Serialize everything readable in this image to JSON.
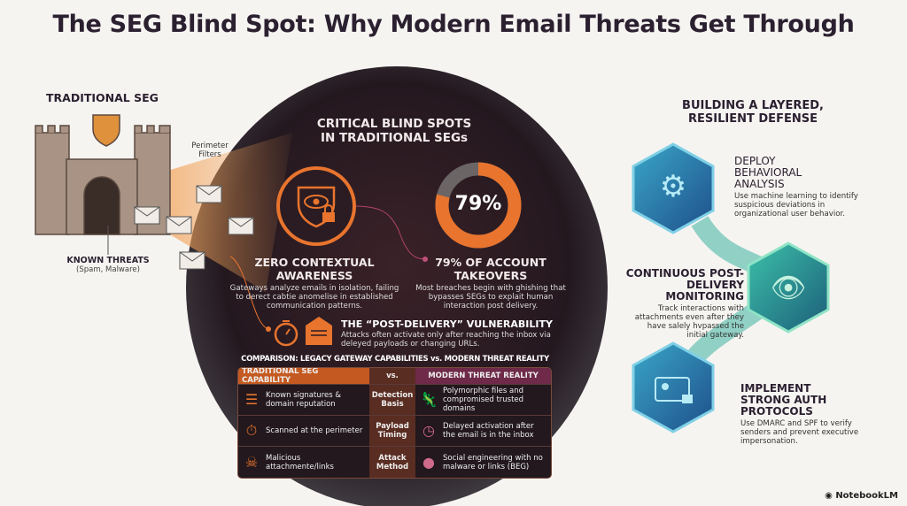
{
  "title": "The SEG Blind Spot: Why Modern Email Threats Get Through",
  "left": {
    "heading": "TRADITIONAL SEG",
    "perimeter_label": "Perimeter Filters",
    "known_threats": "KNOWN THREATS",
    "known_threats_sub": "(Spam, Malware)"
  },
  "center": {
    "heading_line1": "CRITICAL BLIND SPOTS",
    "heading_line2": "IN TRADITIONAL SEGs",
    "zero": {
      "title_line1": "ZERO CONTEXTUAL",
      "title_line2": "AWARENESS",
      "desc": "Gateways analyze emails in isolation, failing to derect cabtie anomelise in established communication patterns."
    },
    "ato": {
      "value_label": "79%",
      "percent": 79,
      "title_line1": "79% OF ACCOUNT",
      "title_line2": "TAKEOVERS",
      "desc": "Most breaches begin with ghishing that bypasses SEGs to explait human interaction post delivery."
    },
    "post": {
      "title": "THE “POST-DELIVERY” VULNERABILITY",
      "desc": "Attacks often activate only after reaching the inbox via deleyed payloads or changing URLs."
    },
    "colors": {
      "accent": "#e8742e",
      "blob": "#2a1d24",
      "magenta": "#7a2a4a"
    }
  },
  "comparison": {
    "heading": "COMPARISON: LEGACY GATEWAY CAPABILITIES vs. MODERN THREAT REALITY",
    "headers": [
      "TRADITIONAL SEG CAPABILITY",
      "vs.",
      "MODERN THREAT REALITY"
    ],
    "rows": [
      {
        "left": "Known signatures & domain reputation",
        "left_icon": "list-window-icon",
        "mid": "Detection Basis",
        "right": "Polymorphic files and compromised trusted domains",
        "right_icon": "chameleon-icon"
      },
      {
        "left": "Scanned at the perimeter",
        "left_icon": "gate-timer-icon",
        "mid": "Payload Timing",
        "right": "Delayed activation after the email is in the inbox",
        "right_icon": "clock-icon"
      },
      {
        "left": "Malicious attachmente/links",
        "left_icon": "skull-icon",
        "mid": "Attack Method",
        "right": "Social engineering with no malware or links (BEG)",
        "right_icon": "hacker-icon"
      }
    ]
  },
  "right": {
    "heading_line1": "BUILDING A LAYERED,",
    "heading_line2": "RESILIENT DEFENSE",
    "steps": [
      {
        "title": "DEPLOY BEHAVIORAL ANALYSIS",
        "desc": "Use machine learning to identify suspicious deviations in organizational user behavior.",
        "icon": "brain-circuit-icon"
      },
      {
        "title": "CONTINUOUS POST-DELIVERY MONITORING",
        "desc": "Track interactions with attachments even after they have salely hvpassed the initial gateway.",
        "icon": "eye-shield-icon"
      },
      {
        "title": "IMPLEMENT STRONG AUTH PROTOCOLS",
        "desc": "Use DMARC and SPF to verify senders and prevent executive impersonation.",
        "icon": "id-lock-icon"
      }
    ]
  },
  "footer": {
    "brand": "NotebookLM"
  }
}
